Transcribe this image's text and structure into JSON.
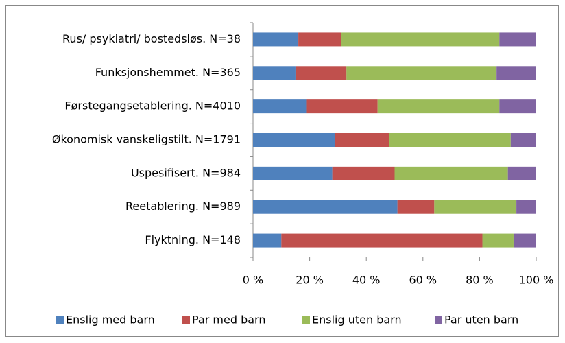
{
  "chart_data": {
    "type": "stacked_barh",
    "categories": [
      "Rus/ psykiatri/ bostedsløs. N=38",
      "Funksjonshemmet. N=365",
      "Førstegangsetablering. N=4010",
      "Økonomisk vanskeligstilt. N=1791",
      "Uspesifisert. N=984",
      "Reetablering. N=989",
      "Flyktning. N=148"
    ],
    "series": [
      {
        "name": "Enslig med barn",
        "color": "#4f81bd",
        "values": [
          16,
          15,
          19,
          29,
          28,
          51,
          10
        ]
      },
      {
        "name": "Par med barn",
        "color": "#c0504d",
        "values": [
          15,
          18,
          25,
          19,
          22,
          13,
          71
        ]
      },
      {
        "name": "Enslig uten barn",
        "color": "#9bbb59",
        "values": [
          56,
          53,
          43,
          43,
          40,
          29,
          11
        ]
      },
      {
        "name": "Par uten barn",
        "color": "#8064a2",
        "values": [
          13,
          14,
          13,
          9,
          10,
          7,
          8
        ]
      }
    ],
    "xlim": [
      0,
      100
    ],
    "xticks": [
      {
        "value": 0,
        "label": "0 %"
      },
      {
        "value": 20,
        "label": "20 %"
      },
      {
        "value": 40,
        "label": "40 %"
      },
      {
        "value": 60,
        "label": "60 %"
      },
      {
        "value": 80,
        "label": "80 %"
      },
      {
        "value": 100,
        "label": "100 %"
      }
    ],
    "legend": "bottom"
  }
}
